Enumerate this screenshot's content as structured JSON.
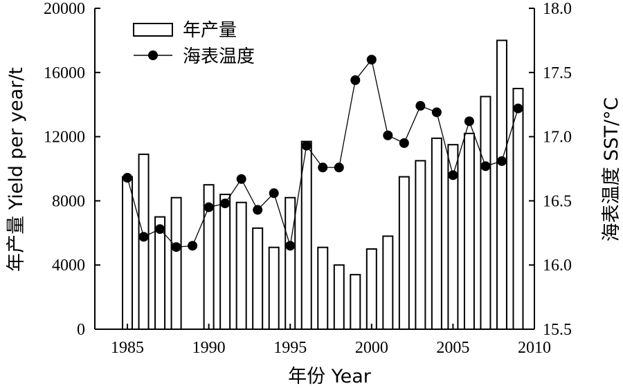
{
  "chart_data": {
    "type": "bar+line",
    "title": "",
    "x": [
      1985,
      1986,
      1987,
      1988,
      1989,
      1990,
      1991,
      1992,
      1993,
      1994,
      1995,
      1996,
      1997,
      1998,
      1999,
      2000,
      2001,
      2002,
      2003,
      2004,
      2005,
      2006,
      2007,
      2008,
      2009
    ],
    "xlabel": "年份 Year",
    "xlim": [
      1983,
      2010
    ],
    "xticks": [
      "1985",
      "1990",
      "1995",
      "2000",
      "2005",
      "2010"
    ],
    "ylabel_left": "年产量 Yield per year/t",
    "ylim_left": [
      0,
      20000
    ],
    "yticks_left": [
      "0",
      "4000",
      "8000",
      "12000",
      "16000",
      "20000"
    ],
    "ylabel_right": "海表温度 SST/°C",
    "ylim_right": [
      15.5,
      18.0
    ],
    "yticks_right": [
      "15.5",
      "16.0",
      "16.5",
      "17.0",
      "17.5",
      "18.0"
    ],
    "legend_position": "top-left",
    "grid": false,
    "series": [
      {
        "name": "年产量",
        "type": "bar",
        "axis": "left",
        "values": [
          9500,
          10900,
          7000,
          8200,
          0,
          9000,
          8400,
          7900,
          6300,
          5100,
          8200,
          11700,
          5100,
          4000,
          3400,
          5000,
          5800,
          9500,
          10500,
          11900,
          11500,
          12200,
          14500,
          18000,
          15000
        ]
      },
      {
        "name": "海表温度",
        "type": "line",
        "axis": "right",
        "values": [
          16.68,
          16.22,
          16.28,
          16.14,
          16.15,
          16.45,
          16.48,
          16.67,
          16.43,
          16.56,
          16.15,
          16.93,
          16.76,
          16.76,
          17.44,
          17.6,
          17.01,
          16.95,
          17.24,
          17.19,
          16.7,
          17.12,
          16.77,
          16.81,
          17.22
        ]
      }
    ]
  }
}
